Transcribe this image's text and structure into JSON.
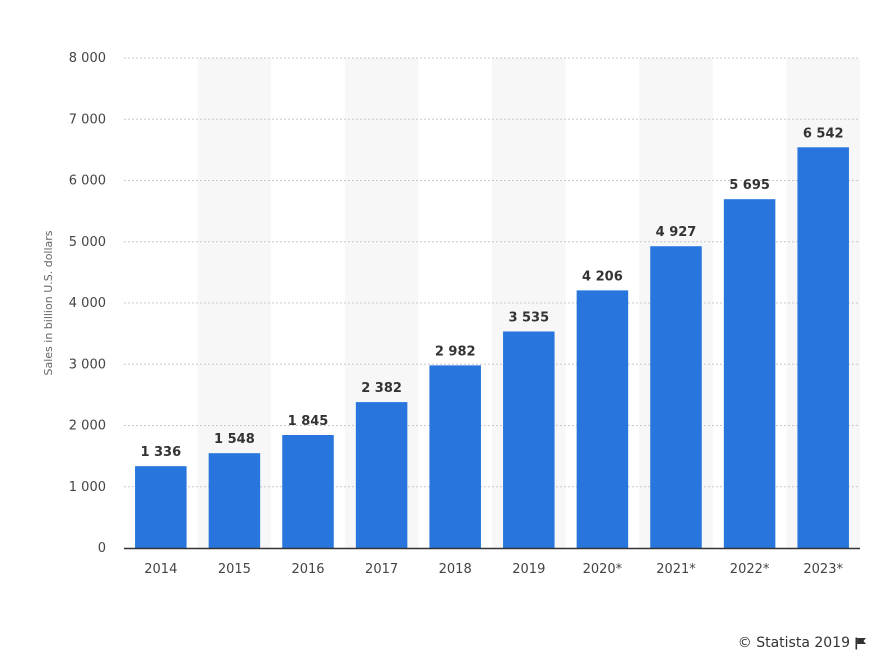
{
  "chart_data": {
    "type": "bar",
    "categories": [
      "2014",
      "2015",
      "2016",
      "2017",
      "2018",
      "2019",
      "2020*",
      "2021*",
      "2022*",
      "2023*"
    ],
    "values": [
      1336,
      1548,
      1845,
      2382,
      2982,
      3535,
      4206,
      4927,
      5695,
      6542
    ],
    "value_labels": [
      "1 336",
      "1 548",
      "1 845",
      "2 382",
      "2 982",
      "3 535",
      "4 206",
      "4 927",
      "5 695",
      "6 542"
    ],
    "ylabel": "Sales in billion U.S. dollars",
    "ylim": [
      0,
      8000
    ],
    "yticks": [
      0,
      1000,
      2000,
      3000,
      4000,
      5000,
      6000,
      7000,
      8000
    ],
    "ytick_labels": [
      "0",
      "1 000",
      "2 000",
      "3 000",
      "4 000",
      "5 000",
      "6 000",
      "7 000",
      "8 000"
    ],
    "grid": true,
    "bar_color": "#2876dd",
    "band_color": "#f7f7f7"
  },
  "credit": {
    "text": "© Statista 2019",
    "icon": "flag-icon"
  }
}
